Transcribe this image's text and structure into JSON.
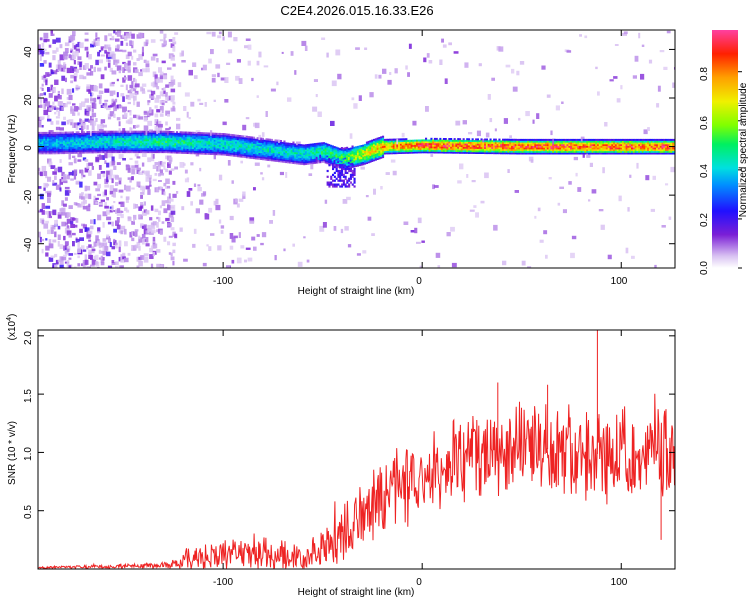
{
  "chart_data": [
    {
      "type": "heatmap",
      "title": "C2E4.2026.015.16.33.E26",
      "xlabel": "Height of straight line (km)",
      "ylabel": "Frequency (Hz)",
      "xlim": [
        -193,
        127
      ],
      "ylim": [
        -50,
        48
      ],
      "xticks": [
        -100,
        0,
        100
      ],
      "xtick_labels": [
        "-100",
        "0",
        "100"
      ],
      "yticks": [
        40,
        20,
        0,
        -20,
        -40
      ],
      "ytick_labels": [
        "40",
        "20",
        "0",
        "-20",
        "-40"
      ],
      "colorbar": {
        "label": "Normalized spectral amplitude",
        "range": [
          0,
          0.97
        ],
        "ticks": [
          0.0,
          0.2,
          0.4,
          0.6,
          0.8
        ],
        "tick_labels": [
          "0.0",
          "0.2",
          "0.4",
          "0.6",
          "0.8"
        ]
      },
      "ridge_center_hz": [
        {
          "x": -185,
          "y": 1.5
        },
        {
          "x": -160,
          "y": 2
        },
        {
          "x": -130,
          "y": 2
        },
        {
          "x": -100,
          "y": 1
        },
        {
          "x": -80,
          "y": -1
        },
        {
          "x": -60,
          "y": -3
        },
        {
          "x": -50,
          "y": -2
        },
        {
          "x": -40,
          "y": -5
        },
        {
          "x": -30,
          "y": -3
        },
        {
          "x": -20,
          "y": 0
        },
        {
          "x": 0,
          "y": 0.5
        },
        {
          "x": 50,
          "y": 0
        },
        {
          "x": 125,
          "y": 0
        }
      ],
      "ridge_peak_amplitude": [
        {
          "x": -185,
          "y": 0.4
        },
        {
          "x": -130,
          "y": 0.5
        },
        {
          "x": -100,
          "y": 0.45
        },
        {
          "x": -60,
          "y": 0.45
        },
        {
          "x": -40,
          "y": 0.55
        },
        {
          "x": -25,
          "y": 0.75
        },
        {
          "x": 0,
          "y": 0.9
        },
        {
          "x": 125,
          "y": 0.9
        }
      ]
    },
    {
      "type": "line",
      "xlabel": "Height of straight line (km)",
      "ylabel": "SNR (10 * v/v)",
      "scale_label": "(x10",
      "scale_exponent": "4",
      "scale_close": ")",
      "color": "#ee2222",
      "xlim": [
        -193,
        127
      ],
      "ylim": [
        0,
        2.05
      ],
      "xticks": [
        -100,
        0,
        100
      ],
      "xtick_labels": [
        "-100",
        "0",
        "100"
      ],
      "yticks": [
        0.5,
        1.0,
        1.5,
        2.0
      ],
      "ytick_labels": [
        "0.5",
        "1.0",
        "1.5",
        "2.0"
      ],
      "series": [
        {
          "name": "SNR",
          "baseline": [
            {
              "x": -193,
              "y": 0.01
            },
            {
              "x": -130,
              "y": 0.03
            },
            {
              "x": -120,
              "y": 0.08
            },
            {
              "x": -100,
              "y": 0.12
            },
            {
              "x": -80,
              "y": 0.12
            },
            {
              "x": -60,
              "y": 0.1
            },
            {
              "x": -45,
              "y": 0.18
            },
            {
              "x": -35,
              "y": 0.35
            },
            {
              "x": -25,
              "y": 0.55
            },
            {
              "x": -10,
              "y": 0.7
            },
            {
              "x": 0,
              "y": 0.8
            },
            {
              "x": 20,
              "y": 0.95
            },
            {
              "x": 50,
              "y": 1.05
            },
            {
              "x": 80,
              "y": 1.0
            },
            {
              "x": 110,
              "y": 0.95
            },
            {
              "x": 127,
              "y": 1.0
            }
          ],
          "spread": [
            {
              "x": -193,
              "y": 0.01
            },
            {
              "x": -130,
              "y": 0.03
            },
            {
              "x": -120,
              "y": 0.12
            },
            {
              "x": -100,
              "y": 0.16
            },
            {
              "x": -80,
              "y": 0.16
            },
            {
              "x": -60,
              "y": 0.14
            },
            {
              "x": -45,
              "y": 0.25
            },
            {
              "x": -30,
              "y": 0.35
            },
            {
              "x": 0,
              "y": 0.4
            },
            {
              "x": 50,
              "y": 0.45
            },
            {
              "x": 127,
              "y": 0.45
            }
          ],
          "peaks": [
            {
              "x": 88,
              "y": 2.05
            },
            {
              "x": 38,
              "y": 1.6
            },
            {
              "x": 63,
              "y": 1.58
            },
            {
              "x": 120,
              "y": 0.25
            }
          ]
        }
      ]
    }
  ]
}
